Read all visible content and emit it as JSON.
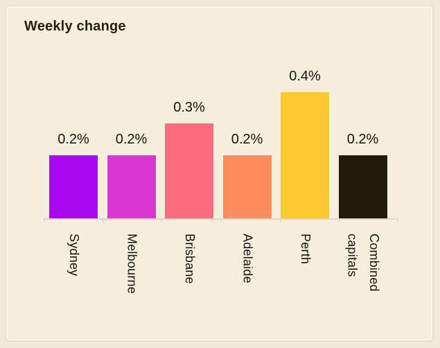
{
  "header": {
    "title": "Weekly change"
  },
  "chart_data": {
    "type": "bar",
    "title": "Weekly change",
    "categories": [
      "Sydney",
      "Melbourne",
      "Brisbane",
      "Adelaide",
      "Perth",
      "Combined capitals"
    ],
    "values": [
      0.2,
      0.2,
      0.3,
      0.2,
      0.4,
      0.2
    ],
    "value_labels": [
      "0.2%",
      "0.2%",
      "0.3%",
      "0.2%",
      "0.4%",
      "0.2%"
    ],
    "unit": "%",
    "bar_colors": [
      "#a808f2",
      "#d937cf",
      "#fb6d7e",
      "#fc8c5e",
      "#fec930",
      "#201a0a"
    ],
    "xlabel": "",
    "ylabel": "",
    "ylim": [
      0,
      0.45
    ],
    "grid": false,
    "legend": false,
    "x_tick_label_rotation_deg": 90,
    "axis_line_color": "#ddd6c4"
  },
  "colors": {
    "page_background": "#f1e9d8",
    "card_background": "#f5eedd",
    "card_border": "#e6dec9",
    "text": "#17130b",
    "title_text": "#261f13"
  }
}
